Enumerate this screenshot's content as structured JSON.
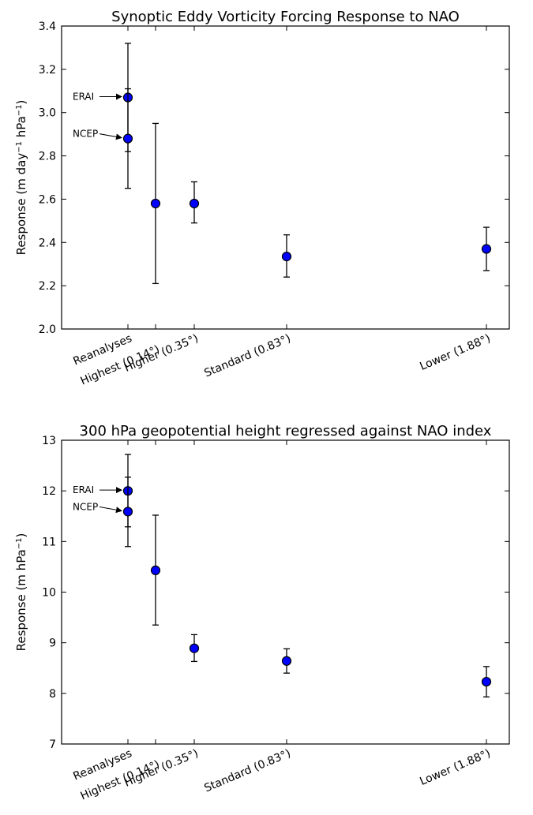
{
  "chart_data": [
    {
      "type": "scatter",
      "title": "Synoptic Eddy Vorticity Forcing Response to NAO",
      "ylabel": "Response (m day$^{-1}$ hPa$^{-1}$)",
      "ylabel_parts": {
        "pre": "Response (m day",
        "sup1": "−1",
        "mid": " hPa",
        "sup2": "−1",
        "post": ")"
      },
      "ylim": [
        2.0,
        3.4
      ],
      "yticks": [
        "2.0",
        "2.2",
        "2.4",
        "2.6",
        "2.8",
        "3.0",
        "3.2",
        "3.4"
      ],
      "categories": [
        "Reanalyses",
        "Highest (0.14°)",
        "Higher (0.35°)",
        "Standard (0.83°)",
        "Lower (1.88°)"
      ],
      "marker_color": "#0000ff",
      "points": [
        {
          "label": "ERAI",
          "category": "Reanalyses",
          "y": 3.07,
          "err_low": 2.82,
          "err_high": 3.32
        },
        {
          "label": "NCEP",
          "category": "Reanalyses",
          "y": 2.88,
          "err_low": 2.65,
          "err_high": 3.11
        },
        {
          "category": "Highest (0.14°)",
          "y": 2.58,
          "err_low": 2.21,
          "err_high": 2.95
        },
        {
          "category": "Higher (0.35°)",
          "y": 2.58,
          "err_low": 2.49,
          "err_high": 2.68
        },
        {
          "category": "Standard (0.83°)",
          "y": 2.335,
          "err_low": 2.24,
          "err_high": 2.435
        },
        {
          "category": "Lower (1.88°)",
          "y": 2.37,
          "err_low": 2.27,
          "err_high": 2.47
        }
      ],
      "annotations": [
        "ERAI",
        "NCEP"
      ]
    },
    {
      "type": "scatter",
      "title": "300 hPa geopotential height regressed against NAO index",
      "ylabel": "Response (m  hPa$^{-1}$)",
      "ylabel_parts": {
        "pre": "Response (m  hPa",
        "sup1": "−1",
        "mid": "",
        "sup2": "",
        "post": ")"
      },
      "ylim": [
        7,
        13
      ],
      "yticks": [
        "7",
        "8",
        "9",
        "10",
        "11",
        "12",
        "13"
      ],
      "categories": [
        "Reanalyses",
        "Highest (0.14°)",
        "Higher (0.35°)",
        "Standard (0.83°)",
        "Lower (1.88°)"
      ],
      "marker_color": "#0000ff",
      "points": [
        {
          "label": "ERAI",
          "category": "Reanalyses",
          "y": 12.0,
          "err_low": 11.29,
          "err_high": 12.72
        },
        {
          "label": "NCEP",
          "category": "Reanalyses",
          "y": 11.59,
          "err_low": 10.9,
          "err_high": 12.27
        },
        {
          "category": "Highest (0.14°)",
          "y": 10.43,
          "err_low": 9.35,
          "err_high": 11.52
        },
        {
          "category": "Higher (0.35°)",
          "y": 8.89,
          "err_low": 8.63,
          "err_high": 9.16
        },
        {
          "category": "Standard (0.83°)",
          "y": 8.64,
          "err_low": 8.4,
          "err_high": 8.88
        },
        {
          "category": "Lower (1.88°)",
          "y": 8.23,
          "err_low": 7.93,
          "err_high": 8.53
        }
      ],
      "annotations": [
        "ERAI",
        "NCEP"
      ]
    }
  ]
}
